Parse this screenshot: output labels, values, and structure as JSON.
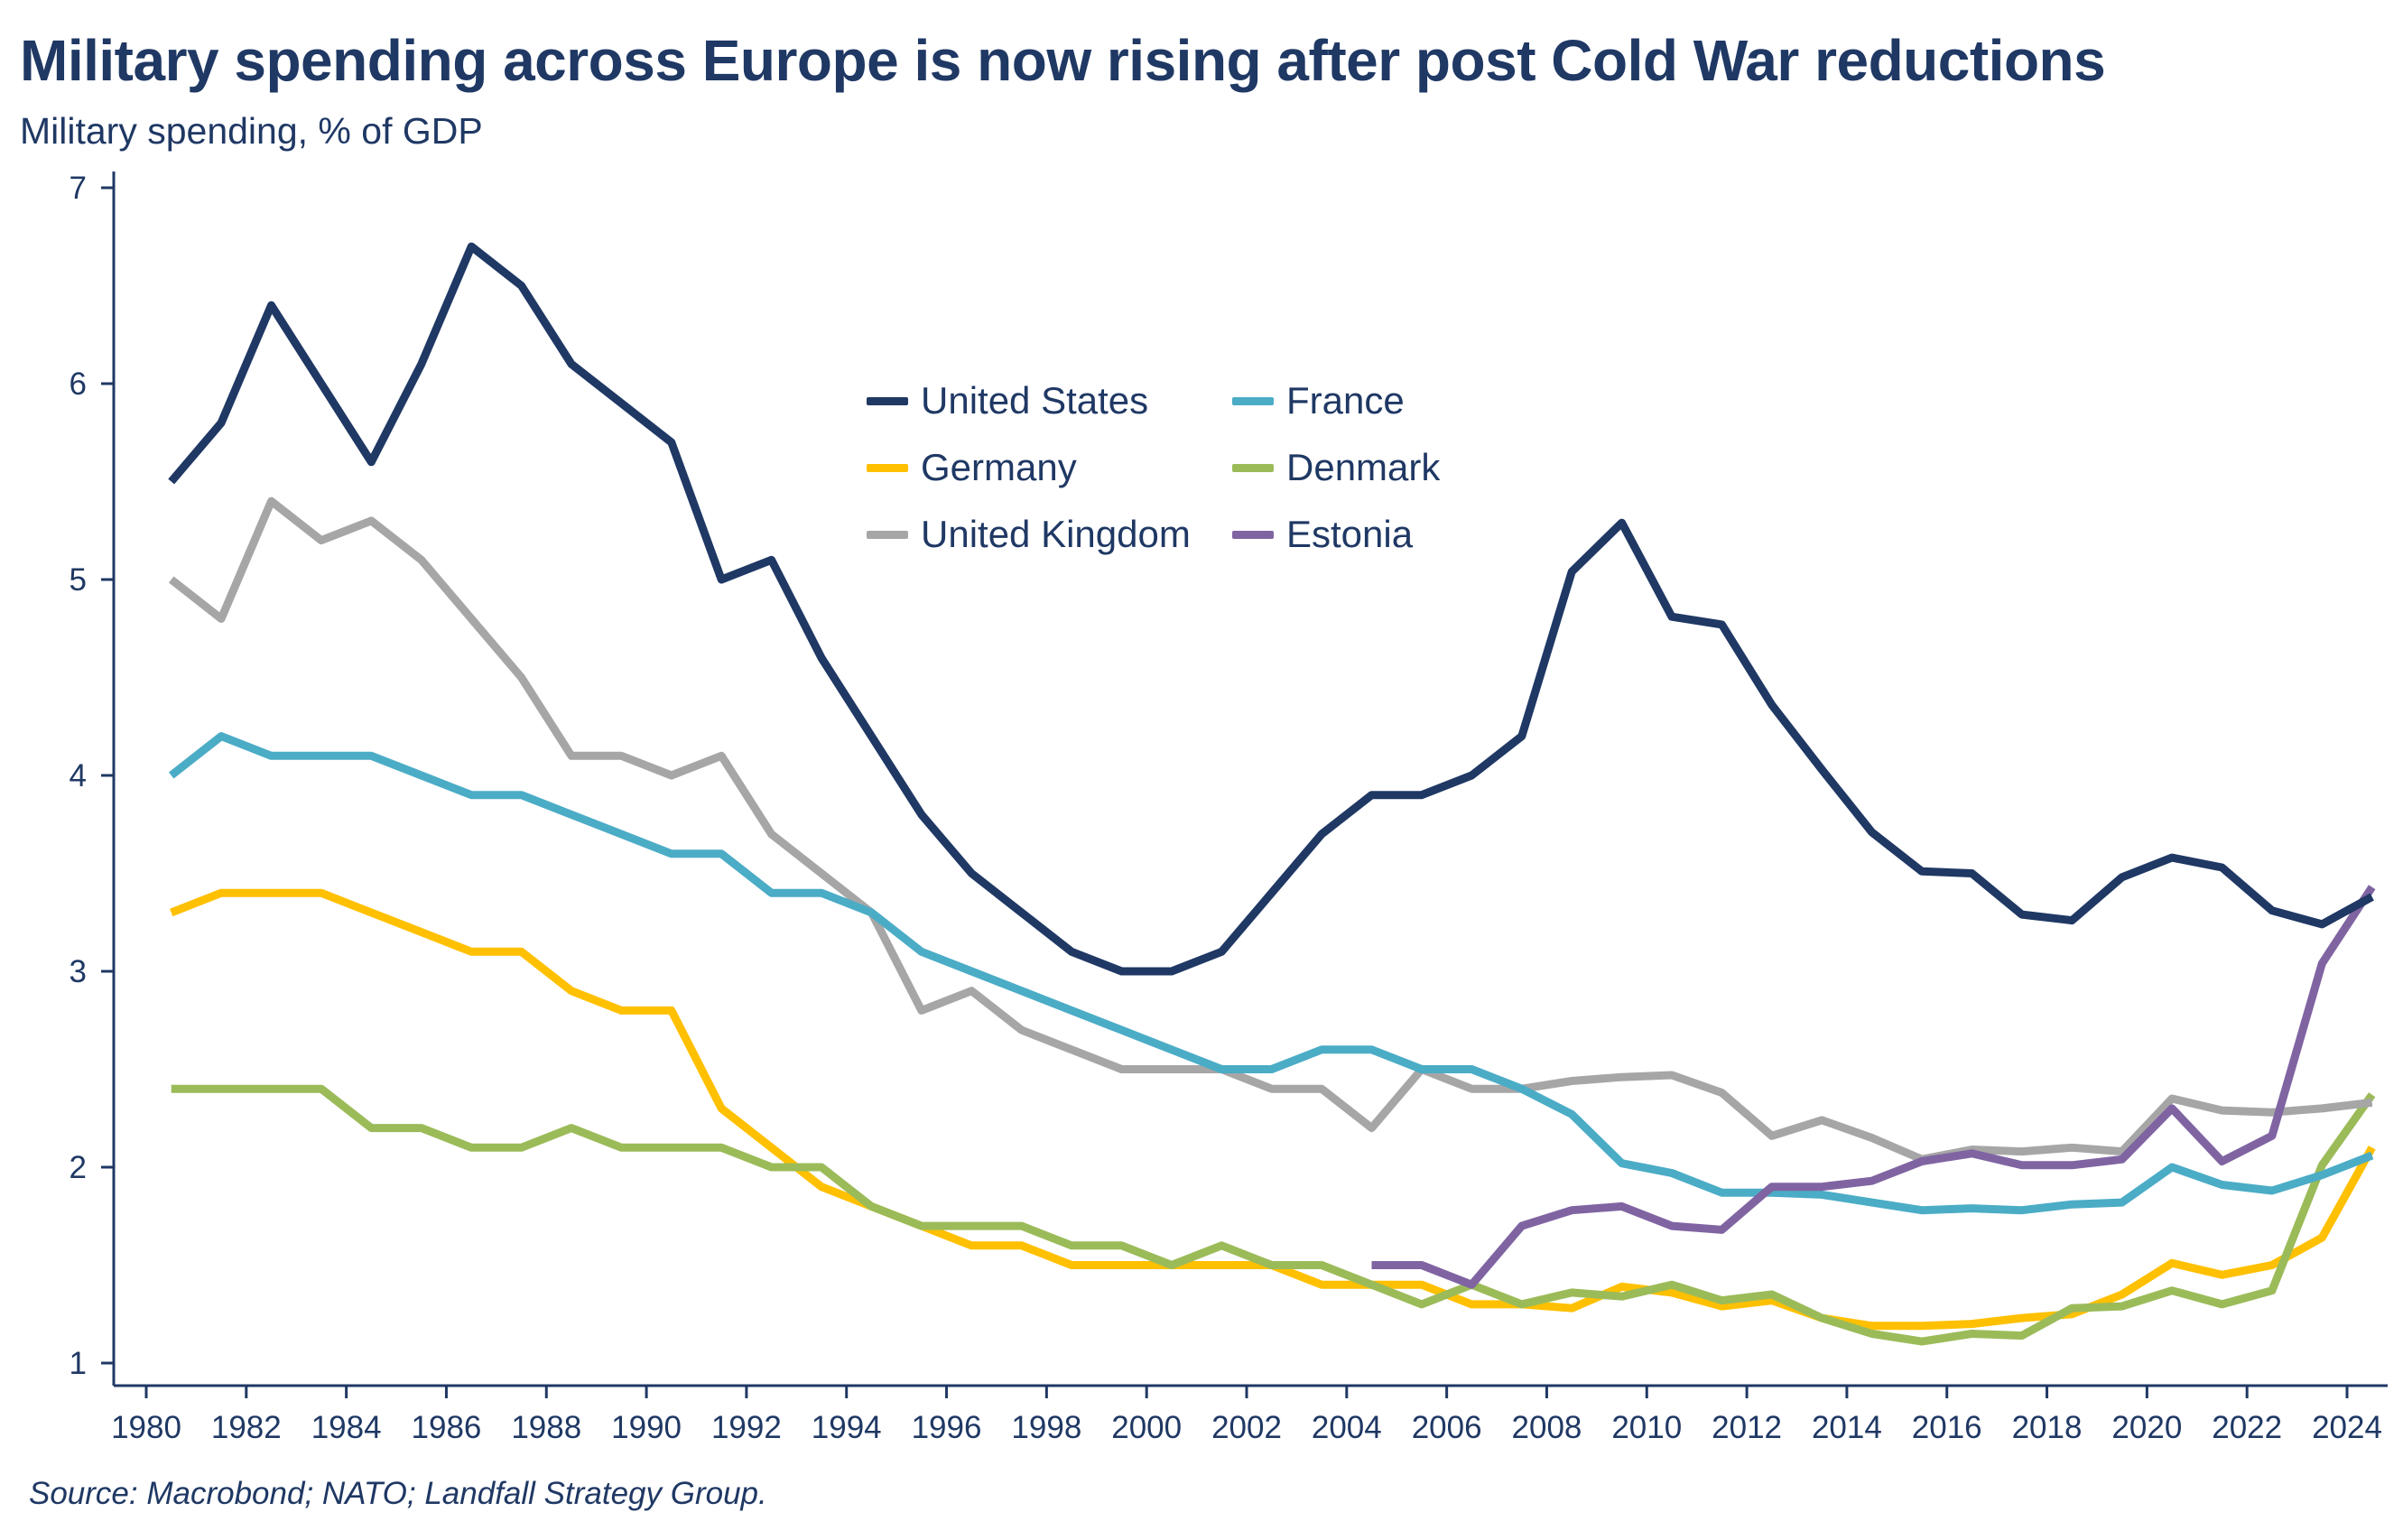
{
  "title": "Military spending across Europe is now rising after post Cold War reductions",
  "subtitle": "Military spending, % of GDP",
  "source": "Source: Macrobond; NATO; Landfall Strategy Group.",
  "chart_data": {
    "type": "line",
    "title": "Military spending across Europe is now rising after post Cold War reductions",
    "ylabel": "Military spending, % of GDP",
    "xlabel": "",
    "xlim": [
      1980,
      2025
    ],
    "ylim": [
      1,
      7
    ],
    "x_ticks": [
      "1980",
      "1982",
      "1984",
      "1986",
      "1988",
      "1990",
      "1992",
      "1994",
      "1996",
      "1998",
      "2000",
      "2002",
      "2004",
      "2006",
      "2008",
      "2010",
      "2012",
      "2014",
      "2016",
      "2018",
      "2020",
      "2022",
      "2024"
    ],
    "y_ticks": [
      "1",
      "2",
      "3",
      "4",
      "5",
      "6",
      "7"
    ],
    "grid": false,
    "legend_position": "top-center",
    "series": [
      {
        "name": "United States",
        "color": "#1f3864",
        "x": [
          1980.5,
          1981.5,
          1982.5,
          1983.5,
          1984.5,
          1985.5,
          1986.5,
          1987.5,
          1988.5,
          1989.5,
          1990.5,
          1991.5,
          1992.5,
          1993.5,
          1994.5,
          1995.5,
          1996.5,
          1997.5,
          1998.5,
          1999.5,
          2000.5,
          2001.5,
          2002.5,
          2003.5,
          2004.5,
          2005.5,
          2006.5,
          2007.5,
          2008.5,
          2009.5,
          2010.5,
          2011.5,
          2012.5,
          2013.5,
          2014.5,
          2015.5,
          2016.5,
          2017.5,
          2018.5,
          2019.5,
          2020.5,
          2021.5,
          2022.5,
          2023.5,
          2024.5
        ],
        "y": [
          5.5,
          5.8,
          6.4,
          6.0,
          5.6,
          6.1,
          6.7,
          6.5,
          6.1,
          5.9,
          5.7,
          5.0,
          5.1,
          4.6,
          4.2,
          3.8,
          3.5,
          3.3,
          3.1,
          3.0,
          3.0,
          3.1,
          3.4,
          3.7,
          3.9,
          3.9,
          4.0,
          4.2,
          5.04,
          5.29,
          4.81,
          4.77,
          4.36,
          4.03,
          3.71,
          3.51,
          3.5,
          3.29,
          3.26,
          3.48,
          3.58,
          3.53,
          3.31,
          3.24,
          3.38
        ]
      },
      {
        "name": "France",
        "color": "#4bacc6",
        "x": [
          1980.5,
          1981.5,
          1982.5,
          1983.5,
          1984.5,
          1985.5,
          1986.5,
          1987.5,
          1988.5,
          1989.5,
          1990.5,
          1991.5,
          1992.5,
          1993.5,
          1994.5,
          1995.5,
          1996.5,
          1997.5,
          1998.5,
          1999.5,
          2000.5,
          2001.5,
          2002.5,
          2003.5,
          2004.5,
          2005.5,
          2006.5,
          2007.5,
          2008.5,
          2009.5,
          2010.5,
          2011.5,
          2012.5,
          2013.5,
          2014.5,
          2015.5,
          2016.5,
          2017.5,
          2018.5,
          2019.5,
          2020.5,
          2021.5,
          2022.5,
          2023.5,
          2024.5
        ],
        "y": [
          4.0,
          4.2,
          4.1,
          4.1,
          4.1,
          4.0,
          3.9,
          3.9,
          3.8,
          3.7,
          3.6,
          3.6,
          3.4,
          3.4,
          3.3,
          3.1,
          3.0,
          2.9,
          2.8,
          2.7,
          2.6,
          2.5,
          2.5,
          2.6,
          2.6,
          2.5,
          2.5,
          2.4,
          2.27,
          2.02,
          1.97,
          1.87,
          1.87,
          1.86,
          1.82,
          1.78,
          1.79,
          1.78,
          1.81,
          1.82,
          2.0,
          1.91,
          1.88,
          1.96,
          2.06
        ]
      },
      {
        "name": "Germany",
        "color": "#ffc000",
        "x": [
          1980.5,
          1981.5,
          1982.5,
          1983.5,
          1984.5,
          1985.5,
          1986.5,
          1987.5,
          1988.5,
          1989.5,
          1990.5,
          1991.5,
          1992.5,
          1993.5,
          1994.5,
          1995.5,
          1996.5,
          1997.5,
          1998.5,
          1999.5,
          2000.5,
          2001.5,
          2002.5,
          2003.5,
          2004.5,
          2005.5,
          2006.5,
          2007.5,
          2008.5,
          2009.5,
          2010.5,
          2011.5,
          2012.5,
          2013.5,
          2014.5,
          2015.5,
          2016.5,
          2017.5,
          2018.5,
          2019.5,
          2020.5,
          2021.5,
          2022.5,
          2023.5,
          2024.5
        ],
        "y": [
          3.3,
          3.4,
          3.4,
          3.4,
          3.3,
          3.2,
          3.1,
          3.1,
          2.9,
          2.8,
          2.8,
          2.3,
          2.1,
          1.9,
          1.8,
          1.7,
          1.6,
          1.6,
          1.5,
          1.5,
          1.5,
          1.5,
          1.5,
          1.4,
          1.4,
          1.4,
          1.3,
          1.3,
          1.28,
          1.39,
          1.36,
          1.29,
          1.32,
          1.23,
          1.19,
          1.19,
          1.2,
          1.23,
          1.25,
          1.35,
          1.51,
          1.45,
          1.5,
          1.64,
          2.1
        ]
      },
      {
        "name": "Denmark",
        "color": "#9bbb59",
        "x": [
          1980.5,
          1981.5,
          1982.5,
          1983.5,
          1984.5,
          1985.5,
          1986.5,
          1987.5,
          1988.5,
          1989.5,
          1990.5,
          1991.5,
          1992.5,
          1993.5,
          1994.5,
          1995.5,
          1996.5,
          1997.5,
          1998.5,
          1999.5,
          2000.5,
          2001.5,
          2002.5,
          2003.5,
          2004.5,
          2005.5,
          2006.5,
          2007.5,
          2008.5,
          2009.5,
          2010.5,
          2011.5,
          2012.5,
          2013.5,
          2014.5,
          2015.5,
          2016.5,
          2017.5,
          2018.5,
          2019.5,
          2020.5,
          2021.5,
          2022.5,
          2023.5,
          2024.5
        ],
        "y": [
          2.4,
          2.4,
          2.4,
          2.4,
          2.2,
          2.2,
          2.1,
          2.1,
          2.2,
          2.1,
          2.1,
          2.1,
          2.0,
          2.0,
          1.8,
          1.7,
          1.7,
          1.7,
          1.6,
          1.6,
          1.5,
          1.6,
          1.5,
          1.5,
          1.4,
          1.3,
          1.4,
          1.3,
          1.36,
          1.34,
          1.4,
          1.32,
          1.35,
          1.23,
          1.15,
          1.11,
          1.15,
          1.14,
          1.28,
          1.29,
          1.37,
          1.3,
          1.37,
          2.01,
          2.37
        ]
      },
      {
        "name": "United Kingdom",
        "color": "#a6a6a6",
        "x": [
          1980.5,
          1981.5,
          1982.5,
          1983.5,
          1984.5,
          1985.5,
          1986.5,
          1987.5,
          1988.5,
          1989.5,
          1990.5,
          1991.5,
          1992.5,
          1993.5,
          1994.5,
          1995.5,
          1996.5,
          1997.5,
          1998.5,
          1999.5,
          2000.5,
          2001.5,
          2002.5,
          2003.5,
          2004.5,
          2005.5,
          2006.5,
          2007.5,
          2008.5,
          2009.5,
          2010.5,
          2011.5,
          2012.5,
          2013.5,
          2014.5,
          2015.5,
          2016.5,
          2017.5,
          2018.5,
          2019.5,
          2020.5,
          2021.5,
          2022.5,
          2023.5,
          2024.5
        ],
        "y": [
          5.0,
          4.8,
          5.4,
          5.2,
          5.3,
          5.1,
          4.8,
          4.5,
          4.1,
          4.1,
          4.0,
          4.1,
          3.7,
          3.5,
          3.3,
          2.8,
          2.9,
          2.7,
          2.6,
          2.5,
          2.5,
          2.5,
          2.4,
          2.4,
          2.2,
          2.5,
          2.4,
          2.4,
          2.44,
          2.46,
          2.47,
          2.38,
          2.16,
          2.24,
          2.15,
          2.04,
          2.09,
          2.08,
          2.1,
          2.08,
          2.35,
          2.29,
          2.28,
          2.3,
          2.33
        ]
      },
      {
        "name": "Estonia",
        "color": "#8064a2",
        "x": [
          2004.5,
          2005.5,
          2006.5,
          2007.5,
          2008.5,
          2009.5,
          2010.5,
          2011.5,
          2012.5,
          2013.5,
          2014.5,
          2015.5,
          2016.5,
          2017.5,
          2018.5,
          2019.5,
          2020.5,
          2021.5,
          2022.5,
          2023.5,
          2024.5
        ],
        "y": [
          1.5,
          1.5,
          1.4,
          1.7,
          1.78,
          1.8,
          1.7,
          1.68,
          1.9,
          1.9,
          1.93,
          2.03,
          2.07,
          2.01,
          2.01,
          2.04,
          2.3,
          2.03,
          2.16,
          3.04,
          3.43
        ]
      }
    ]
  }
}
